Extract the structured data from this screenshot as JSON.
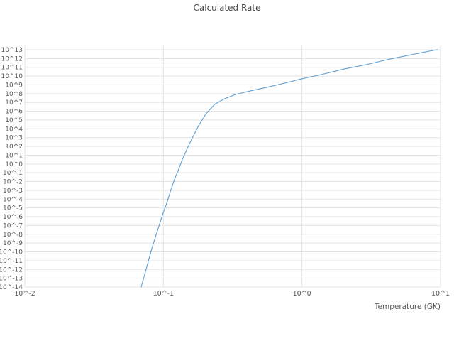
{
  "title": "Calculated Rate",
  "colors": {
    "line": "#5f9ed1",
    "grid": "#e3e3e3",
    "tick_text": "#595959",
    "title_text": "#4c4c4c",
    "background": "#ffffff"
  },
  "chart_data": {
    "type": "line",
    "title": "Calculated Rate",
    "xlabel": "Temperature (GK)",
    "ylabel": "",
    "x_scale": "log",
    "y_scale": "log",
    "xlim": [
      0.01,
      10
    ],
    "ylim": [
      1e-14,
      10000000000000.0
    ],
    "grid": true,
    "legend": false,
    "x_ticks": [
      "10^-2",
      "10^-1",
      "10^0",
      "10^1"
    ],
    "y_ticks": [
      "10^13",
      "10^12",
      "10^11",
      "10^10",
      "10^9",
      "10^8",
      "10^7",
      "10^6",
      "10^5",
      "10^4",
      "10^3",
      "10^2",
      "10^1",
      "10^0",
      "10^-1",
      "10^-2",
      "10^-3",
      "10^-4",
      "10^-5",
      "10^-6",
      "10^-7",
      "10^-8",
      "10^-9",
      "10^-10",
      "10^-11",
      "10^-12",
      "10^-13",
      "10^-14"
    ],
    "series": [
      {
        "name": "Calculated Rate",
        "x": [
          0.069,
          0.072,
          0.075,
          0.079,
          0.083,
          0.088,
          0.094,
          0.1,
          0.107,
          0.113,
          0.12,
          0.128,
          0.137,
          0.148,
          0.162,
          0.18,
          0.205,
          0.235,
          0.275,
          0.33,
          0.42,
          0.55,
          0.75,
          1.0,
          1.4,
          2.0,
          2.9,
          4.2,
          6.0,
          8.0,
          9.5
        ],
        "y": [
          1e-14,
          1e-13,
          1e-12,
          2e-11,
          3.2e-10,
          6.3e-09,
          1.6e-07,
          3.2e-06,
          6.3e-05,
          0.001,
          0.016,
          0.2,
          3.2,
          50,
          1000.0,
          25000.0,
          630000.0,
          6300000.0,
          25000000.0,
          79000000.0,
          200000000.0,
          500000000.0,
          1600000000.0,
          5000000000.0,
          16000000000.0,
          63000000000.0,
          200000000000.0,
          790000000000.0,
          2500000000000.0,
          6300000000000.0,
          10000000000000.0
        ]
      }
    ]
  }
}
